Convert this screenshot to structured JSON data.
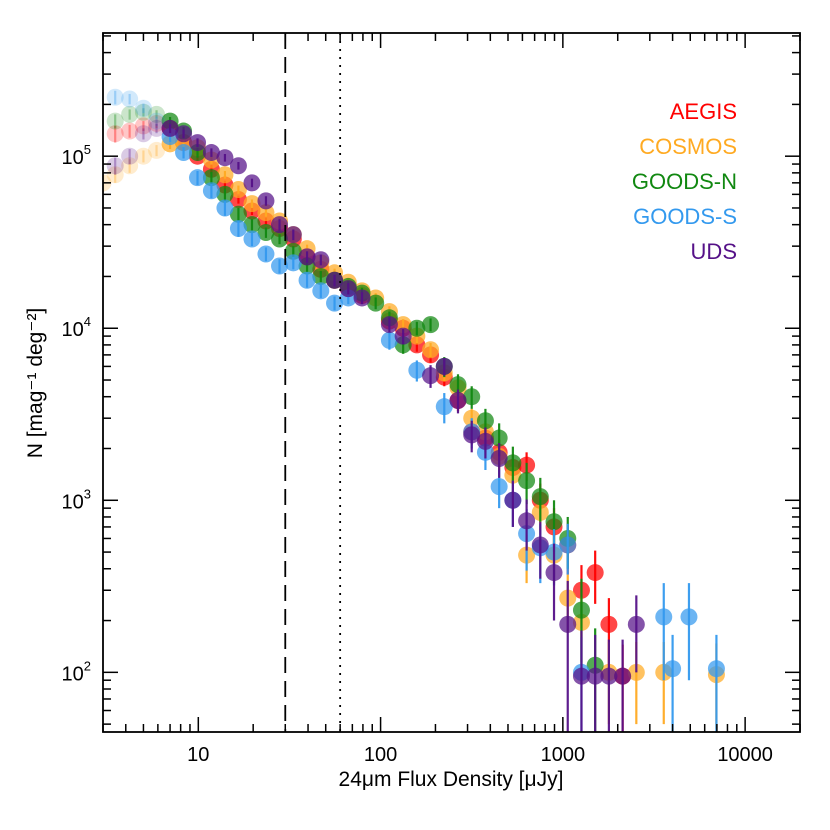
{
  "chart_data": {
    "type": "scatter",
    "title": "",
    "xlabel": "24μm Flux Density [μJy]",
    "ylabel": "N [mag⁻¹ deg⁻²]",
    "x_scale": "log",
    "y_scale": "log",
    "xlim": [
      3,
      20000
    ],
    "ylim": [
      45,
      520000
    ],
    "x_ticks": [
      {
        "value": 10,
        "label": "10"
      },
      {
        "value": 100,
        "label": "100"
      },
      {
        "value": 1000,
        "label": "1000"
      },
      {
        "value": 10000,
        "label": "10000"
      }
    ],
    "y_ticks": [
      {
        "value": 100,
        "base": "10",
        "exp": "2"
      },
      {
        "value": 1000,
        "base": "10",
        "exp": "3"
      },
      {
        "value": 10000,
        "base": "10",
        "exp": "4"
      },
      {
        "value": 100000,
        "base": "10",
        "exp": "5"
      }
    ],
    "reference_lines": [
      {
        "x": 30,
        "style": "dashed"
      },
      {
        "x": 60,
        "style": "dotted"
      }
    ],
    "legend_position": "top-right",
    "completeness_limit_note": "points below ~7 μJy drawn faded",
    "series": [
      {
        "name": "AEGIS",
        "color": "#ff0000",
        "points": [
          [
            3.5,
            135000,
            15000
          ],
          [
            4.2,
            140000,
            12000
          ],
          [
            5.0,
            150000,
            10000
          ],
          [
            5.9,
            155000,
            9000
          ],
          [
            7.0,
            145000,
            8000
          ],
          [
            8.3,
            120000,
            7000
          ],
          [
            9.9,
            100000,
            6000
          ],
          [
            11.8,
            84000,
            5000
          ],
          [
            14.0,
            68000,
            4000
          ],
          [
            16.6,
            56000,
            3000
          ],
          [
            19.7,
            48000,
            2500
          ],
          [
            23.5,
            42000,
            2000
          ],
          [
            27.9,
            38000,
            2000
          ],
          [
            33.2,
            33000,
            1800
          ],
          [
            39.5,
            26000,
            1500
          ],
          [
            47.0,
            22000,
            1200
          ],
          [
            55.9,
            19000,
            1100
          ],
          [
            66.5,
            17000,
            1000
          ],
          [
            79.1,
            15500,
            900
          ],
          [
            111.8,
            11000,
            800
          ],
          [
            133.0,
            10000,
            800
          ],
          [
            158.1,
            8000,
            700
          ],
          [
            188.0,
            7000,
            700
          ],
          [
            223.6,
            5200,
            600
          ],
          [
            265.9,
            3800,
            500
          ],
          [
            316.2,
            2500,
            400
          ],
          [
            376.0,
            2300,
            400
          ],
          [
            447.2,
            1900,
            350
          ],
          [
            531.8,
            1550,
            300
          ],
          [
            632.5,
            1600,
            300
          ],
          [
            752.1,
            1000,
            250
          ],
          [
            894.4,
            700,
            200
          ],
          [
            1063.7,
            550,
            180
          ],
          [
            1265.0,
            300,
            120
          ],
          [
            1504.3,
            380,
            130
          ],
          [
            1788.9,
            190,
            80
          ],
          [
            2127.4,
            95,
            50
          ]
        ]
      },
      {
        "name": "COSMOS",
        "color": "#ffaa22",
        "points": [
          [
            3.0,
            70000,
            8000
          ],
          [
            3.5,
            78000,
            8000
          ],
          [
            4.2,
            88000,
            8000
          ],
          [
            5.0,
            100000,
            8000
          ],
          [
            5.9,
            108000,
            8000
          ],
          [
            7.0,
            118000,
            8000
          ],
          [
            8.3,
            120000,
            7000
          ],
          [
            9.9,
            112000,
            6000
          ],
          [
            11.8,
            95000,
            5000
          ],
          [
            14.0,
            78000,
            4000
          ],
          [
            16.6,
            64000,
            3500
          ],
          [
            19.7,
            53000,
            3000
          ],
          [
            23.5,
            47000,
            2500
          ],
          [
            27.9,
            42000,
            2200
          ],
          [
            33.2,
            35000,
            2000
          ],
          [
            39.5,
            29000,
            1600
          ],
          [
            47.0,
            24000,
            1400
          ],
          [
            55.9,
            21000,
            1200
          ],
          [
            66.5,
            18500,
            1100
          ],
          [
            79.1,
            16500,
            1000
          ],
          [
            94.0,
            15000,
            1000
          ],
          [
            111.8,
            12500,
            900
          ],
          [
            133.0,
            10500,
            800
          ],
          [
            158.1,
            9000,
            800
          ],
          [
            188.0,
            7500,
            700
          ],
          [
            223.6,
            5500,
            600
          ],
          [
            265.9,
            4500,
            500
          ],
          [
            316.2,
            3000,
            400
          ],
          [
            376.0,
            2500,
            400
          ],
          [
            447.2,
            1800,
            300
          ],
          [
            531.8,
            1400,
            300
          ],
          [
            632.5,
            480,
            150
          ],
          [
            752.1,
            850,
            220
          ],
          [
            894.4,
            480,
            150
          ],
          [
            1063.7,
            270,
            100
          ],
          [
            1265.0,
            195,
            80
          ],
          [
            1788.9,
            100,
            50
          ],
          [
            2529.8,
            100,
            50
          ],
          [
            3577.7,
            100,
            50
          ],
          [
            6959.0,
            97,
            50
          ]
        ]
      },
      {
        "name": "GOODS-N",
        "color": "#118811",
        "points": [
          [
            3.5,
            160000,
            15000
          ],
          [
            4.2,
            175000,
            12000
          ],
          [
            5.0,
            180000,
            10000
          ],
          [
            5.9,
            175000,
            10000
          ],
          [
            7.0,
            160000,
            9000
          ],
          [
            8.3,
            140000,
            8000
          ],
          [
            9.9,
            105000,
            7000
          ],
          [
            11.8,
            75000,
            6000
          ],
          [
            14.0,
            60000,
            5000
          ],
          [
            16.6,
            46000,
            4000
          ],
          [
            19.7,
            40000,
            3000
          ],
          [
            23.5,
            36000,
            2500
          ],
          [
            27.9,
            33000,
            2200
          ],
          [
            33.2,
            28000,
            2000
          ],
          [
            39.5,
            23000,
            1800
          ],
          [
            47.0,
            20000,
            1500
          ],
          [
            55.9,
            19000,
            1400
          ],
          [
            66.5,
            17500,
            1300
          ],
          [
            79.1,
            16000,
            1200
          ],
          [
            94.0,
            14000,
            1100
          ],
          [
            111.8,
            11500,
            1000
          ],
          [
            133.0,
            8000,
            900
          ],
          [
            158.1,
            10000,
            900
          ],
          [
            188.0,
            10500,
            900
          ],
          [
            223.6,
            6000,
            800
          ],
          [
            265.9,
            4700,
            700
          ],
          [
            316.2,
            4000,
            600
          ],
          [
            376.0,
            2900,
            500
          ],
          [
            447.2,
            2300,
            500
          ],
          [
            531.8,
            1650,
            400
          ],
          [
            632.5,
            1300,
            350
          ],
          [
            752.1,
            1050,
            300
          ],
          [
            894.4,
            750,
            250
          ],
          [
            1063.7,
            600,
            200
          ],
          [
            1265.0,
            230,
            120
          ],
          [
            1504.3,
            110,
            70
          ]
        ]
      },
      {
        "name": "GOODS-S",
        "color": "#3399ee",
        "points": [
          [
            3.5,
            220000,
            20000
          ],
          [
            4.2,
            215000,
            15000
          ],
          [
            5.0,
            190000,
            12000
          ],
          [
            5.9,
            160000,
            10000
          ],
          [
            7.0,
            130000,
            9000
          ],
          [
            8.3,
            105000,
            8000
          ],
          [
            9.9,
            75000,
            7000
          ],
          [
            11.8,
            63000,
            6000
          ],
          [
            14.0,
            50000,
            5000
          ],
          [
            16.6,
            38000,
            4000
          ],
          [
            19.7,
            33000,
            3000
          ],
          [
            23.5,
            27000,
            2500
          ],
          [
            27.9,
            23000,
            2200
          ],
          [
            33.2,
            24000,
            2000
          ],
          [
            39.5,
            19000,
            1800
          ],
          [
            47.0,
            16500,
            1500
          ],
          [
            55.9,
            14000,
            1300
          ],
          [
            66.5,
            15000,
            1200
          ],
          [
            111.8,
            8500,
            1000
          ],
          [
            158.1,
            5700,
            800
          ],
          [
            223.6,
            3500,
            700
          ],
          [
            316.2,
            2500,
            500
          ],
          [
            376.0,
            1900,
            400
          ],
          [
            447.2,
            1200,
            300
          ],
          [
            531.8,
            1000,
            300
          ],
          [
            632.5,
            640,
            250
          ],
          [
            752.1,
            530,
            200
          ],
          [
            894.4,
            500,
            180
          ],
          [
            1063.7,
            550,
            180
          ],
          [
            1265.0,
            100,
            60
          ],
          [
            3577.7,
            210,
            120
          ],
          [
            4000.0,
            105,
            60
          ],
          [
            4919.0,
            210,
            120
          ],
          [
            6959.0,
            105,
            60
          ]
        ]
      },
      {
        "name": "UDS",
        "color": "#551188",
        "points": [
          [
            3.5,
            88000,
            10000
          ],
          [
            4.2,
            100000,
            10000
          ],
          [
            5.0,
            135000,
            10000
          ],
          [
            5.9,
            145000,
            9000
          ],
          [
            7.0,
            145000,
            9000
          ],
          [
            8.3,
            135000,
            8000
          ],
          [
            9.9,
            120000,
            7000
          ],
          [
            11.8,
            105000,
            6000
          ],
          [
            14.0,
            98000,
            5000
          ],
          [
            16.6,
            88000,
            4500
          ],
          [
            19.7,
            70000,
            4000
          ],
          [
            23.5,
            55000,
            3500
          ],
          [
            27.9,
            40000,
            3000
          ],
          [
            33.2,
            35000,
            2500
          ],
          [
            39.5,
            26000,
            2000
          ],
          [
            47.0,
            25000,
            1800
          ],
          [
            55.9,
            19000,
            1500
          ],
          [
            66.5,
            17000,
            1300
          ],
          [
            79.1,
            15000,
            1200
          ],
          [
            111.8,
            10500,
            1000
          ],
          [
            133.0,
            9000,
            900
          ],
          [
            188.0,
            5300,
            800
          ],
          [
            223.6,
            6000,
            700
          ],
          [
            265.9,
            3800,
            600
          ],
          [
            316.2,
            2400,
            500
          ],
          [
            376.0,
            2200,
            450
          ],
          [
            447.2,
            1750,
            400
          ],
          [
            531.8,
            1000,
            300
          ],
          [
            632.5,
            760,
            250
          ],
          [
            752.1,
            550,
            200
          ],
          [
            894.4,
            380,
            180
          ],
          [
            1063.7,
            190,
            150
          ],
          [
            1265.0,
            95,
            80
          ],
          [
            1504.3,
            95,
            70
          ],
          [
            1788.9,
            95,
            60
          ],
          [
            2127.4,
            95,
            60
          ],
          [
            2529.8,
            190,
            90
          ]
        ]
      }
    ]
  }
}
